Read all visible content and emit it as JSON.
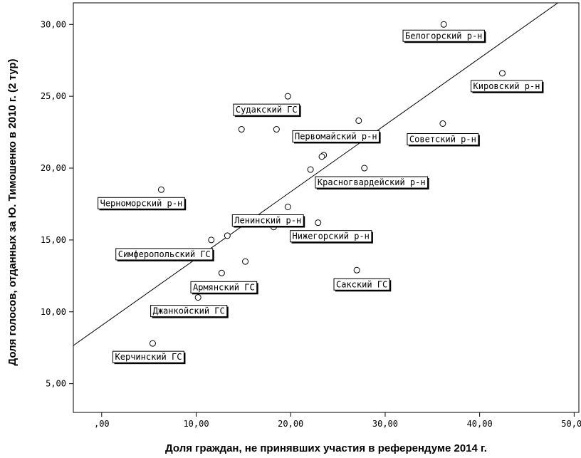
{
  "chart_data": {
    "type": "scatter",
    "title": "",
    "xlabel": "Доля граждан, не принявших участия в референдуме 2014 г.",
    "ylabel": "Доля голосов, отданных за Ю. Тимошенко в 2010 г. (2 тур)",
    "xlim": [
      -3,
      50.5
    ],
    "ylim": [
      3,
      31.5
    ],
    "x_ticks": [
      0,
      10,
      20,
      30,
      40,
      50
    ],
    "x_tick_labels": [
      ",00",
      "10,00",
      "20,00",
      "30,00",
      "40,00",
      "50,00"
    ],
    "y_ticks": [
      5,
      10,
      15,
      20,
      25,
      30
    ],
    "y_tick_labels": [
      "5,00",
      "10,00",
      "15,00",
      "20,00",
      "25,00",
      "30,00"
    ],
    "grid": false,
    "fit_line": {
      "intercept": 9.05,
      "slope": 0.465
    },
    "points": [
      {
        "x": 36.2,
        "y": 30.0,
        "label": "Белогорский р-н"
      },
      {
        "x": 42.4,
        "y": 26.6,
        "label": "Кировский р-н"
      },
      {
        "x": 19.7,
        "y": 25.0,
        "label": "Судакский ГС"
      },
      {
        "x": 27.2,
        "y": 23.3,
        "label": "Первомайский р-н"
      },
      {
        "x": 36.1,
        "y": 23.1,
        "label": "Советский р-н"
      },
      {
        "x": 14.8,
        "y": 22.7,
        "label": ""
      },
      {
        "x": 18.5,
        "y": 22.7,
        "label": ""
      },
      {
        "x": 23.5,
        "y": 20.9,
        "label": ""
      },
      {
        "x": 23.3,
        "y": 20.8,
        "label": ""
      },
      {
        "x": 22.1,
        "y": 19.9,
        "label": ""
      },
      {
        "x": 27.8,
        "y": 20.0,
        "label": "Красногвардейский р-н"
      },
      {
        "x": 6.3,
        "y": 18.5,
        "label": "Черноморский р-н"
      },
      {
        "x": 19.7,
        "y": 17.3,
        "label": "Ленинский р-н"
      },
      {
        "x": 18.2,
        "y": 15.9,
        "label": ""
      },
      {
        "x": 22.9,
        "y": 16.2,
        "label": "Нижегорский р-н"
      },
      {
        "x": 13.3,
        "y": 15.3,
        "label": ""
      },
      {
        "x": 11.6,
        "y": 15.0,
        "label": "Симферопольский ГС"
      },
      {
        "x": 15.2,
        "y": 13.5,
        "label": ""
      },
      {
        "x": 12.7,
        "y": 12.7,
        "label": "Армянский ГС"
      },
      {
        "x": 27.0,
        "y": 12.9,
        "label": "Сакский ГС"
      },
      {
        "x": 10.2,
        "y": 11.0,
        "label": "Джанкойский ГС"
      },
      {
        "x": 5.4,
        "y": 7.8,
        "label": "Керчинский ГС"
      }
    ]
  }
}
